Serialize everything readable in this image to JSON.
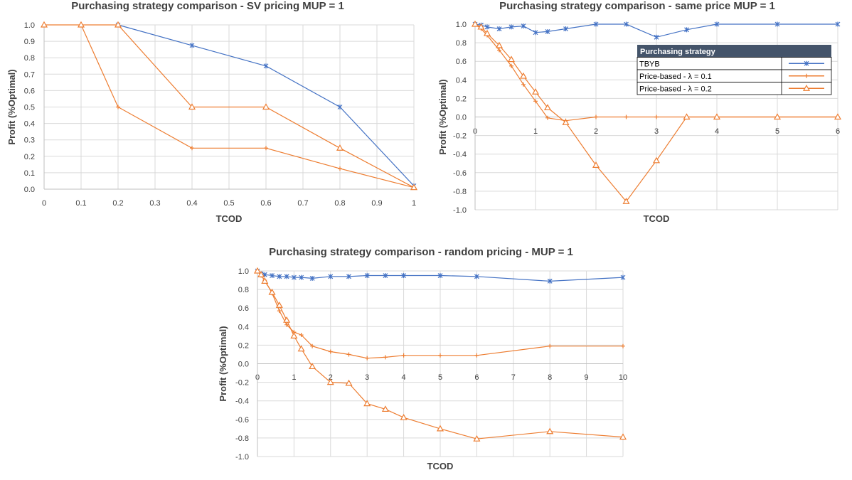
{
  "colors": {
    "tbyb": "#4472C4",
    "price": "#ED7D31",
    "grid": "#D9D9D9",
    "axis": "#BFBFBF",
    "text": "#404040",
    "legend_header": "#44546A"
  },
  "chart_data": [
    {
      "type": "line",
      "title": "Purchasing strategy comparison - SV pricing MUP = 1",
      "xlabel": "TCOD",
      "ylabel": "Profit (%Optimal)",
      "xlim": [
        0,
        1
      ],
      "ylim": [
        0,
        1
      ],
      "x_ticks": [
        "0",
        "0.1",
        "0.2",
        "0.3",
        "0.4",
        "0.5",
        "0.6",
        "0.7",
        "0.8",
        "0.9",
        "1"
      ],
      "y_ticks": [
        "0.0",
        "0.1",
        "0.2",
        "0.3",
        "0.4",
        "0.5",
        "0.6",
        "0.7",
        "0.8",
        "0.9",
        "1.0"
      ],
      "legend": null,
      "series": [
        {
          "name": "TBYB",
          "color_key": "tbyb",
          "marker": "x",
          "x": [
            0.2,
            0.4,
            0.6,
            0.8,
            1.0
          ],
          "y": [
            1.0,
            0.875,
            0.75,
            0.5,
            0.02
          ]
        },
        {
          "name": "Price-based - λ = 0.1",
          "color_key": "price",
          "marker": "plus",
          "x": [
            0.1,
            0.2,
            0.4,
            0.6,
            0.8,
            1.0
          ],
          "y": [
            1.0,
            0.5,
            0.25,
            0.25,
            0.125,
            0.01
          ]
        },
        {
          "name": "Price-based - λ = 0.2",
          "color_key": "price",
          "marker": "triangle",
          "x": [
            0,
            0.1,
            0.2,
            0.4,
            0.6,
            0.8,
            1.0
          ],
          "y": [
            1.0,
            1.0,
            1.0,
            0.5,
            0.5,
            0.25,
            0.01
          ]
        }
      ]
    },
    {
      "type": "line",
      "title": "Purchasing strategy comparison - same price MUP = 1",
      "xlabel": "TCOD",
      "ylabel": "Profit (%Optimal)",
      "xlim": [
        0,
        6
      ],
      "ylim": [
        -1,
        1
      ],
      "x_ticks": [
        "0",
        "1",
        "2",
        "3",
        "4",
        "5",
        "6"
      ],
      "y_ticks": [
        "-1.0",
        "-0.8",
        "-0.6",
        "-0.4",
        "-0.2",
        "0.0",
        "0.2",
        "0.4",
        "0.6",
        "0.8",
        "1.0"
      ],
      "legend": {
        "title": "Purchasing strategy",
        "position": "top-right",
        "entries": [
          "TBYB",
          "Price-based - λ = 0.1",
          "Price-based - λ = 0.2"
        ]
      },
      "series": [
        {
          "name": "TBYB",
          "color_key": "tbyb",
          "marker": "x",
          "x": [
            0,
            0.1,
            0.2,
            0.4,
            0.6,
            0.8,
            1.0,
            1.2,
            1.5,
            2.0,
            2.5,
            3.0,
            3.5,
            4.0,
            5.0,
            6.0
          ],
          "y": [
            1.0,
            0.99,
            0.97,
            0.95,
            0.97,
            0.98,
            0.91,
            0.92,
            0.95,
            1.0,
            1.0,
            0.86,
            0.94,
            1.0,
            1.0,
            1.0
          ]
        },
        {
          "name": "Price-based - λ = 0.1",
          "color_key": "price",
          "marker": "plus",
          "x": [
            0,
            0.1,
            0.2,
            0.4,
            0.6,
            0.8,
            1.0,
            1.2,
            1.5,
            2.0,
            2.5,
            3.0,
            3.5,
            4.0,
            5.0,
            6.0
          ],
          "y": [
            1.0,
            0.95,
            0.88,
            0.72,
            0.55,
            0.35,
            0.17,
            -0.01,
            -0.04,
            0.0,
            0.0,
            0.0,
            0.0,
            0.0,
            0.0,
            0.0
          ]
        },
        {
          "name": "Price-based - λ = 0.2",
          "color_key": "price",
          "marker": "triangle",
          "x": [
            0,
            0.1,
            0.2,
            0.4,
            0.6,
            0.8,
            1.0,
            1.2,
            1.5,
            2.0,
            2.5,
            3.0,
            3.5,
            4.0,
            5.0,
            6.0
          ],
          "y": [
            1.0,
            0.97,
            0.9,
            0.77,
            0.62,
            0.44,
            0.27,
            0.1,
            -0.06,
            -0.52,
            -0.91,
            -0.47,
            0.0,
            0.0,
            0.0,
            0.0
          ]
        }
      ]
    },
    {
      "type": "line",
      "title": "Purchasing strategy comparison - random pricing - MUP = 1",
      "xlabel": "TCOD",
      "ylabel": "Profit (%Optimal)",
      "xlim": [
        0,
        10
      ],
      "ylim": [
        -1,
        1
      ],
      "x_ticks": [
        "0",
        "1",
        "2",
        "3",
        "4",
        "5",
        "6",
        "7",
        "8",
        "9",
        "10"
      ],
      "y_ticks": [
        "-1.0",
        "-0.8",
        "-0.6",
        "-0.4",
        "-0.2",
        "0.0",
        "0.2",
        "0.4",
        "0.6",
        "0.8",
        "1.0"
      ],
      "legend": null,
      "series": [
        {
          "name": "TBYB",
          "color_key": "tbyb",
          "marker": "x",
          "x": [
            0,
            0.1,
            0.2,
            0.4,
            0.6,
            0.8,
            1.0,
            1.2,
            1.5,
            2.0,
            2.5,
            3.0,
            3.5,
            4.0,
            5.0,
            6.0,
            8.0,
            10.0
          ],
          "y": [
            1.0,
            0.97,
            0.96,
            0.95,
            0.94,
            0.94,
            0.93,
            0.93,
            0.92,
            0.94,
            0.94,
            0.95,
            0.95,
            0.95,
            0.95,
            0.94,
            0.89,
            0.93
          ]
        },
        {
          "name": "Price-based - λ = 0.1",
          "color_key": "price",
          "marker": "plus",
          "x": [
            0,
            0.1,
            0.2,
            0.4,
            0.6,
            0.8,
            1.0,
            1.2,
            1.5,
            2.0,
            2.5,
            3.0,
            3.5,
            4.0,
            5.0,
            6.0,
            8.0,
            10.0
          ],
          "y": [
            1.0,
            0.95,
            0.9,
            0.76,
            0.57,
            0.42,
            0.34,
            0.31,
            0.19,
            0.13,
            0.1,
            0.06,
            0.07,
            0.09,
            0.09,
            0.09,
            0.19,
            0.19
          ]
        },
        {
          "name": "Price-based - λ = 0.2",
          "color_key": "price",
          "marker": "triangle",
          "x": [
            0,
            0.1,
            0.2,
            0.4,
            0.6,
            0.8,
            1.0,
            1.2,
            1.5,
            2.0,
            2.5,
            3.0,
            3.5,
            4.0,
            5.0,
            6.0,
            8.0,
            10.0
          ],
          "y": [
            1.0,
            0.96,
            0.89,
            0.77,
            0.63,
            0.47,
            0.3,
            0.16,
            -0.03,
            -0.2,
            -0.21,
            -0.43,
            -0.49,
            -0.58,
            -0.7,
            -0.81,
            -0.73,
            -0.79
          ]
        }
      ]
    }
  ]
}
